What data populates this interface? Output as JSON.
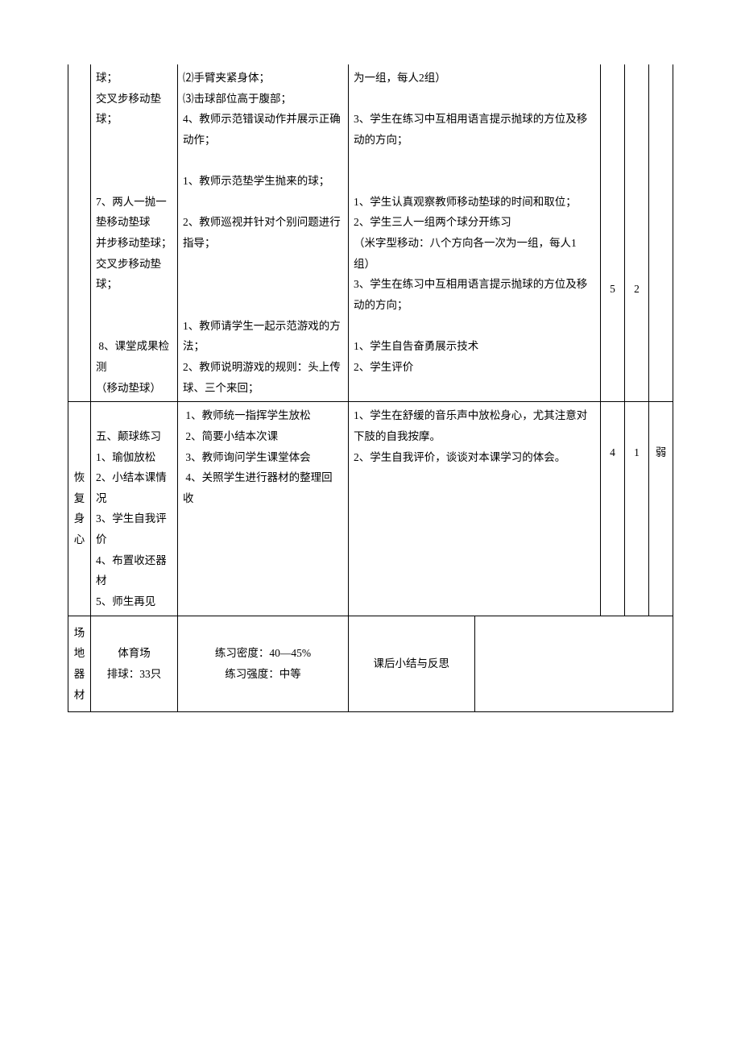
{
  "row1": {
    "c2": "球；\n交叉步移动垫球；\n\n\n\n7、两人一抛一垫移动垫球\n并步移动垫球；\n交叉步移动垫球；\n\n\n 8、课堂成果检测\n（移动垫球）",
    "c3": "⑵手臂夹紧身体；\n⑶击球部位高于腹部；\n4、教师示范错误动作并展示正确动作；\n\n1、教师示范垫学生抛来的球；\n\n2、教师巡视并针对个别问题进行指导；\n\n\n\n1、教师请学生一起示范游戏的方法；\n2、教师说明游戏的规则：头上传球、三个来回；",
    "c4": "为一组，每人2组）\n\n3、学生在练习中互相用语言提示抛球的方位及移动的方向；\n\n\n1、学生认真观察教师移动垫球的时间和取位；\n2、学生三人一组两个球分开练习\n（米字型移动：八个方向各一次为一组，每人1组）\n3、学生在练习中互相用语言提示抛球的方位及移动的方向；\n\n1、学生自告奋勇展示技术\n2、学生评价",
    "c5a": "",
    "c5b": "5",
    "c6a": "",
    "c6b": "2"
  },
  "row2": {
    "c1": "恢复身心",
    "c2": "\n五、颠球练习\n1、瑜伽放松\n2、小结本课情况\n3、学生自我评价\n4、布置收还器材\n5、师生再见",
    "c3": " 1、教师统一指挥学生放松\n 2、简要小结本次课\n 3、教师询问学生课堂体会\n 4、关照学生进行器材的整理回收",
    "c4": "1、学生在舒缓的音乐声中放松身心，尤其注意对下肢的自我按摩。\n2、学生自我评价，谈谈对本课学习的体会。",
    "c5": "4",
    "c6": "1",
    "c7": "弱"
  },
  "row3": {
    "c1": "场地器材",
    "c2": "体育场\n排球：33只",
    "c3": "练习密度：40—45%\n练习强度：中等",
    "c4a": "课后小结与反思",
    "c4b": ""
  }
}
